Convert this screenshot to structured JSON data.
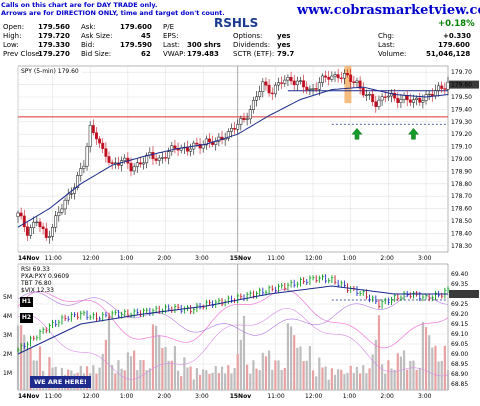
{
  "notice": {
    "line1": "Calls on this chart are for DAY TRADE only.",
    "line2": "Arrows are for DIRECTION ONLY, time and target don't count."
  },
  "symbol": "RSHLS",
  "website": "www.cobrasmarketview.com",
  "change_pct": "+0.18%",
  "quote": {
    "open_label": "Open:",
    "open": "179.560",
    "high_label": "High:",
    "high": "179.720",
    "low_label": "Low:",
    "low": "179.330",
    "prevclose_label": "Prev Close:",
    "prevclose": "179.270",
    "ask_label": "Ask:",
    "ask": "179.600",
    "asksize_label": "Ask Size:",
    "asksize": "45",
    "bid_label": "Bid:",
    "bid": "179.590",
    "bidsize_label": "Bid Size:",
    "bidsize": "62",
    "pe_label": "P/E",
    "pe": "",
    "eps_label": "EPS:",
    "eps": "",
    "last_label": "Last:",
    "last": "300 shrs",
    "vwap_label": "VWAP:",
    "vwap": "179.483",
    "options_label": "Options:",
    "options": "yes",
    "dividends_label": "Dividends:",
    "dividends": "yes",
    "sctr_label": "SCTR (ETF):",
    "sctr": "79.7",
    "chg_label": "Chg:",
    "chg": "+0.330",
    "last2_label": "Last:",
    "last2": "179.600",
    "volume_label": "Volume:",
    "volume": "51,046,128"
  },
  "buttons": {
    "h1": "H1",
    "h2": "H2"
  },
  "we_are_here": "WE ARE HERE!",
  "chart_data": [
    {
      "type": "candlestick",
      "series_label": "SPY (5-min) 179.60",
      "x_ticks": [
        "14Nov",
        "11:00",
        "12:00",
        "1:00",
        "2:00",
        "3:00",
        "15Nov",
        "11:00",
        "12:00",
        "1:00",
        "2:00",
        "3:00"
      ],
      "y_ticks": [
        179.7,
        179.6,
        179.5,
        179.4,
        179.3,
        179.2,
        179.1,
        179.0,
        178.9,
        178.8,
        178.7,
        178.6,
        178.5,
        178.4,
        178.3
      ],
      "ylim": [
        178.25,
        179.75
      ],
      "levels": {
        "red_line": 179.34,
        "blue_line": 179.55,
        "dashed_line": 179.28
      },
      "arrows": [
        {
          "direction": "up",
          "color": "green"
        },
        {
          "direction": "up",
          "color": "green"
        }
      ],
      "highlight": "orange bar near 11:40 15Nov",
      "close_path": [
        [
          0,
          178.55
        ],
        [
          3,
          178.42
        ],
        [
          6,
          178.5
        ],
        [
          9,
          178.36
        ],
        [
          12,
          178.52
        ],
        [
          15,
          178.65
        ],
        [
          18,
          178.8
        ],
        [
          21,
          178.95
        ],
        [
          23,
          179.25
        ],
        [
          25,
          179.2
        ],
        [
          27,
          179.05
        ],
        [
          30,
          178.95
        ],
        [
          33,
          179.0
        ],
        [
          36,
          178.92
        ],
        [
          39,
          178.98
        ],
        [
          42,
          179.02
        ],
        [
          45,
          179.0
        ],
        [
          48,
          179.05
        ],
        [
          51,
          179.1
        ],
        [
          54,
          179.08
        ],
        [
          57,
          179.1
        ],
        [
          60,
          179.15
        ],
        [
          63,
          179.12
        ],
        [
          66,
          179.2
        ],
        [
          69,
          179.25
        ],
        [
          72,
          179.32
        ],
        [
          75,
          179.45
        ],
        [
          78,
          179.6
        ],
        [
          81,
          179.55
        ],
        [
          84,
          179.62
        ],
        [
          87,
          179.65
        ],
        [
          90,
          179.6
        ],
        [
          93,
          179.55
        ],
        [
          96,
          179.62
        ],
        [
          99,
          179.66
        ],
        [
          102,
          179.68
        ],
        [
          105,
          179.65
        ],
        [
          108,
          179.62
        ],
        [
          111,
          179.5
        ],
        [
          114,
          179.45
        ],
        [
          117,
          179.52
        ],
        [
          120,
          179.48
        ],
        [
          123,
          179.5
        ],
        [
          126,
          179.45
        ],
        [
          129,
          179.5
        ],
        [
          132,
          179.52
        ],
        [
          135,
          179.58
        ],
        [
          137,
          179.62
        ]
      ],
      "ma_path": [
        [
          0,
          178.45
        ],
        [
          10,
          178.6
        ],
        [
          20,
          178.8
        ],
        [
          30,
          178.95
        ],
        [
          40,
          179.02
        ],
        [
          50,
          179.08
        ],
        [
          60,
          179.12
        ],
        [
          70,
          179.2
        ],
        [
          80,
          179.35
        ],
        [
          90,
          179.48
        ],
        [
          100,
          179.56
        ],
        [
          110,
          179.58
        ],
        [
          120,
          179.52
        ],
        [
          130,
          179.5
        ],
        [
          137,
          179.52
        ]
      ]
    },
    {
      "type": "line",
      "rsi_label": "RSI 69.33",
      "legend": [
        "PXA:PXY 0.9609",
        "TBT 76.80",
        "$VIX 12.33"
      ],
      "y_ticks": [
        69.4,
        69.35,
        69.3,
        69.25,
        69.2,
        69.15,
        69.1,
        69.05,
        69.0,
        68.95,
        68.9,
        68.85
      ],
      "vol_ticks": [
        "5M",
        "4M",
        "3M",
        "2M",
        "1M"
      ],
      "ylim": [
        68.82,
        69.45
      ],
      "dashed_level": 69.27,
      "price_path": [
        [
          0,
          69.02
        ],
        [
          5,
          69.08
        ],
        [
          10,
          69.14
        ],
        [
          15,
          69.18
        ],
        [
          20,
          69.2
        ],
        [
          25,
          69.18
        ],
        [
          30,
          69.2
        ],
        [
          35,
          69.2
        ],
        [
          40,
          69.21
        ],
        [
          45,
          69.22
        ],
        [
          50,
          69.23
        ],
        [
          55,
          69.22
        ],
        [
          60,
          69.25
        ],
        [
          65,
          69.26
        ],
        [
          70,
          69.28
        ],
        [
          75,
          69.3
        ],
        [
          80,
          69.32
        ],
        [
          85,
          69.34
        ],
        [
          90,
          69.36
        ],
        [
          95,
          69.38
        ],
        [
          100,
          69.37
        ],
        [
          105,
          69.33
        ],
        [
          110,
          69.3
        ],
        [
          115,
          69.25
        ],
        [
          120,
          69.28
        ],
        [
          125,
          69.3
        ],
        [
          130,
          69.28
        ],
        [
          135,
          69.3
        ],
        [
          137,
          69.32
        ]
      ],
      "ma_path": [
        [
          0,
          69.0
        ],
        [
          20,
          69.15
        ],
        [
          40,
          69.2
        ],
        [
          60,
          69.24
        ],
        [
          80,
          69.3
        ],
        [
          100,
          69.34
        ],
        [
          110,
          69.32
        ],
        [
          120,
          69.3
        ],
        [
          137,
          69.3
        ]
      ],
      "volumes": [
        4.4,
        3.0,
        2.2,
        1.8,
        2.5,
        1.5,
        1.2,
        1.8,
        1.0,
        0.8,
        1.4,
        0.9,
        1.1,
        0.7,
        1.0,
        0.6,
        0.9,
        1.2,
        0.8,
        0.7,
        1.0,
        0.9,
        1.3,
        0.7,
        1.0,
        0.8,
        1.4,
        1.6,
        2.0,
        3.3,
        1.6,
        0.8,
        1.2,
        0.9,
        1.1,
        2.0,
        1.4,
        1.6,
        1.0,
        1.8,
        1.3,
        0.8,
        1.0
      ]
    }
  ]
}
